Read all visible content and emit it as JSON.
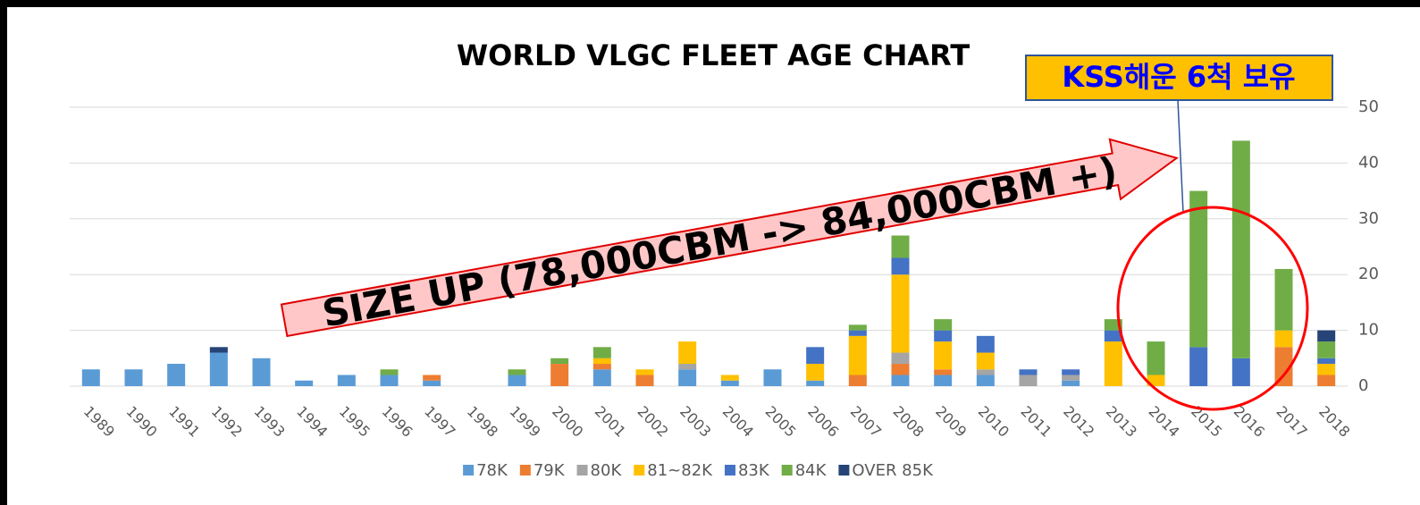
{
  "chart_data": {
    "type": "stacked_bar",
    "title": "WORLD VLGC FLEET AGE CHART",
    "categories": [
      "1989",
      "1990",
      "1991",
      "1992",
      "1993",
      "1994",
      "1995",
      "1996",
      "1997",
      "1998",
      "1999",
      "2000",
      "2001",
      "2002",
      "2003",
      "2004",
      "2005",
      "2006",
      "2007",
      "2008",
      "2009",
      "2010",
      "2011",
      "2012",
      "2013",
      "2014",
      "2015",
      "2016",
      "2017",
      "2018"
    ],
    "series": [
      {
        "name": "78K",
        "color": "#5b9bd5",
        "values": [
          3,
          3,
          4,
          6,
          5,
          1,
          2,
          2,
          1,
          0,
          2,
          0,
          3,
          0,
          3,
          1,
          3,
          1,
          0,
          2,
          2,
          2,
          0,
          1,
          0,
          0,
          0,
          0,
          0,
          0
        ]
      },
      {
        "name": "79K",
        "color": "#ed7d31",
        "values": [
          0,
          0,
          0,
          0,
          0,
          0,
          0,
          0,
          1,
          0,
          0,
          4,
          1,
          2,
          0,
          0,
          0,
          0,
          2,
          2,
          1,
          0,
          0,
          0,
          0,
          0,
          0,
          0,
          7,
          2
        ]
      },
      {
        "name": "80K",
        "color": "#a5a5a5",
        "values": [
          0,
          0,
          0,
          0,
          0,
          0,
          0,
          0,
          0,
          0,
          0,
          0,
          0,
          0,
          1,
          0,
          0,
          0,
          0,
          2,
          0,
          1,
          2,
          1,
          0,
          0,
          0,
          0,
          0,
          0
        ]
      },
      {
        "name": "81~82K",
        "color": "#ffc000",
        "values": [
          0,
          0,
          0,
          0,
          0,
          0,
          0,
          0,
          0,
          0,
          0,
          0,
          1,
          1,
          4,
          1,
          0,
          3,
          7,
          14,
          5,
          3,
          0,
          0,
          8,
          2,
          0,
          0,
          3,
          2
        ]
      },
      {
        "name": "83K",
        "color": "#4472c4",
        "values": [
          0,
          0,
          0,
          0,
          0,
          0,
          0,
          0,
          0,
          0,
          0,
          0,
          0,
          0,
          0,
          0,
          0,
          3,
          1,
          3,
          2,
          3,
          1,
          1,
          2,
          0,
          7,
          5,
          0,
          1
        ]
      },
      {
        "name": "84K",
        "color": "#70ad47",
        "values": [
          0,
          0,
          0,
          0,
          0,
          0,
          0,
          1,
          0,
          0,
          1,
          1,
          2,
          0,
          0,
          0,
          0,
          0,
          1,
          4,
          2,
          0,
          0,
          0,
          2,
          6,
          28,
          39,
          11,
          3
        ]
      },
      {
        "name": "OVER 85K",
        "color": "#264478",
        "values": [
          0,
          0,
          0,
          1,
          0,
          0,
          0,
          0,
          0,
          0,
          0,
          0,
          0,
          0,
          0,
          0,
          0,
          0,
          0,
          0,
          0,
          0,
          0,
          0,
          0,
          0,
          0,
          0,
          0,
          2
        ]
      }
    ],
    "ylim": [
      0,
      50
    ],
    "yticks": [
      0,
      10,
      20,
      30,
      40,
      50
    ],
    "grid": true,
    "annotations": [
      "SIZE UP (78,000CBM -> 84,000CBM +)",
      "KSS해운 6척 보유"
    ]
  }
}
